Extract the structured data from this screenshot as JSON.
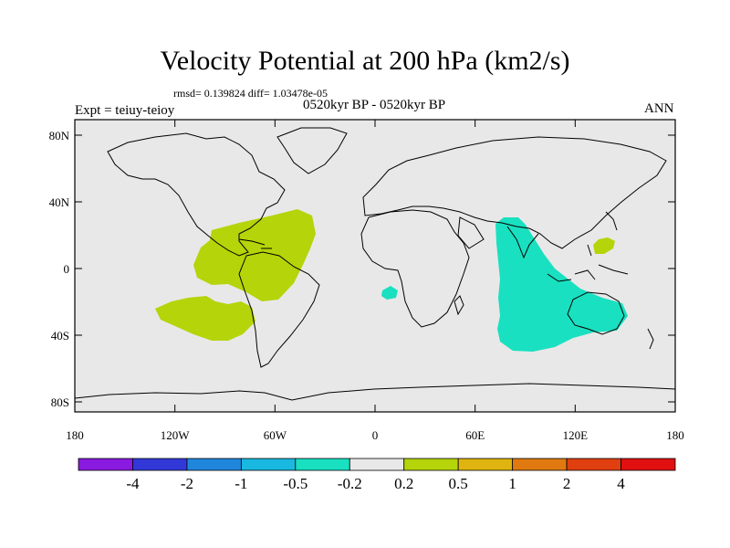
{
  "title": "Velocity Potential at 200 hPa (km2/s)",
  "stats": {
    "text": "rmsd= 0.139824  diff= 1.03478e-05"
  },
  "left_string": "Expt = teiuy-teioy",
  "center_string": "0520kyr BP - 0520kyr BP",
  "right_string": "ANN",
  "map": {
    "lat_labels": [
      "80N",
      "40N",
      "0",
      "40S",
      "80S"
    ],
    "lon_labels": [
      "180",
      "120W",
      "60W",
      "0",
      "60E",
      "120E",
      "180"
    ],
    "background_color": "#e8e8e8",
    "anomaly_regions": [
      {
        "name": "tropical-atlantic-positive",
        "class": "0.2 to 0.5",
        "color": "#b5d40a"
      },
      {
        "name": "south-pacific-positive",
        "class": "0.2 to 0.5",
        "color": "#b5d40a"
      },
      {
        "name": "west-pacific-positive",
        "class": "0.2 to 0.5",
        "color": "#b5d40a"
      },
      {
        "name": "indian-ocean-negative",
        "class": "-0.5 to -0.2",
        "color": "#19e0c0"
      },
      {
        "name": "gulf-of-guinea-negative",
        "class": "-0.5 to -0.2",
        "color": "#19e0c0"
      }
    ]
  },
  "colorbar": {
    "labels": [
      "-4",
      "-2",
      "-1",
      "-0.5",
      "-0.2",
      "0.2",
      "0.5",
      "1",
      "2",
      "4"
    ],
    "colors": [
      "#8a1ae0",
      "#3238d8",
      "#1f86dc",
      "#19b8e0",
      "#19e0c0",
      "#e8e8e8",
      "#b5d40a",
      "#e0b410",
      "#e07a10",
      "#e04010",
      "#e01010"
    ]
  }
}
